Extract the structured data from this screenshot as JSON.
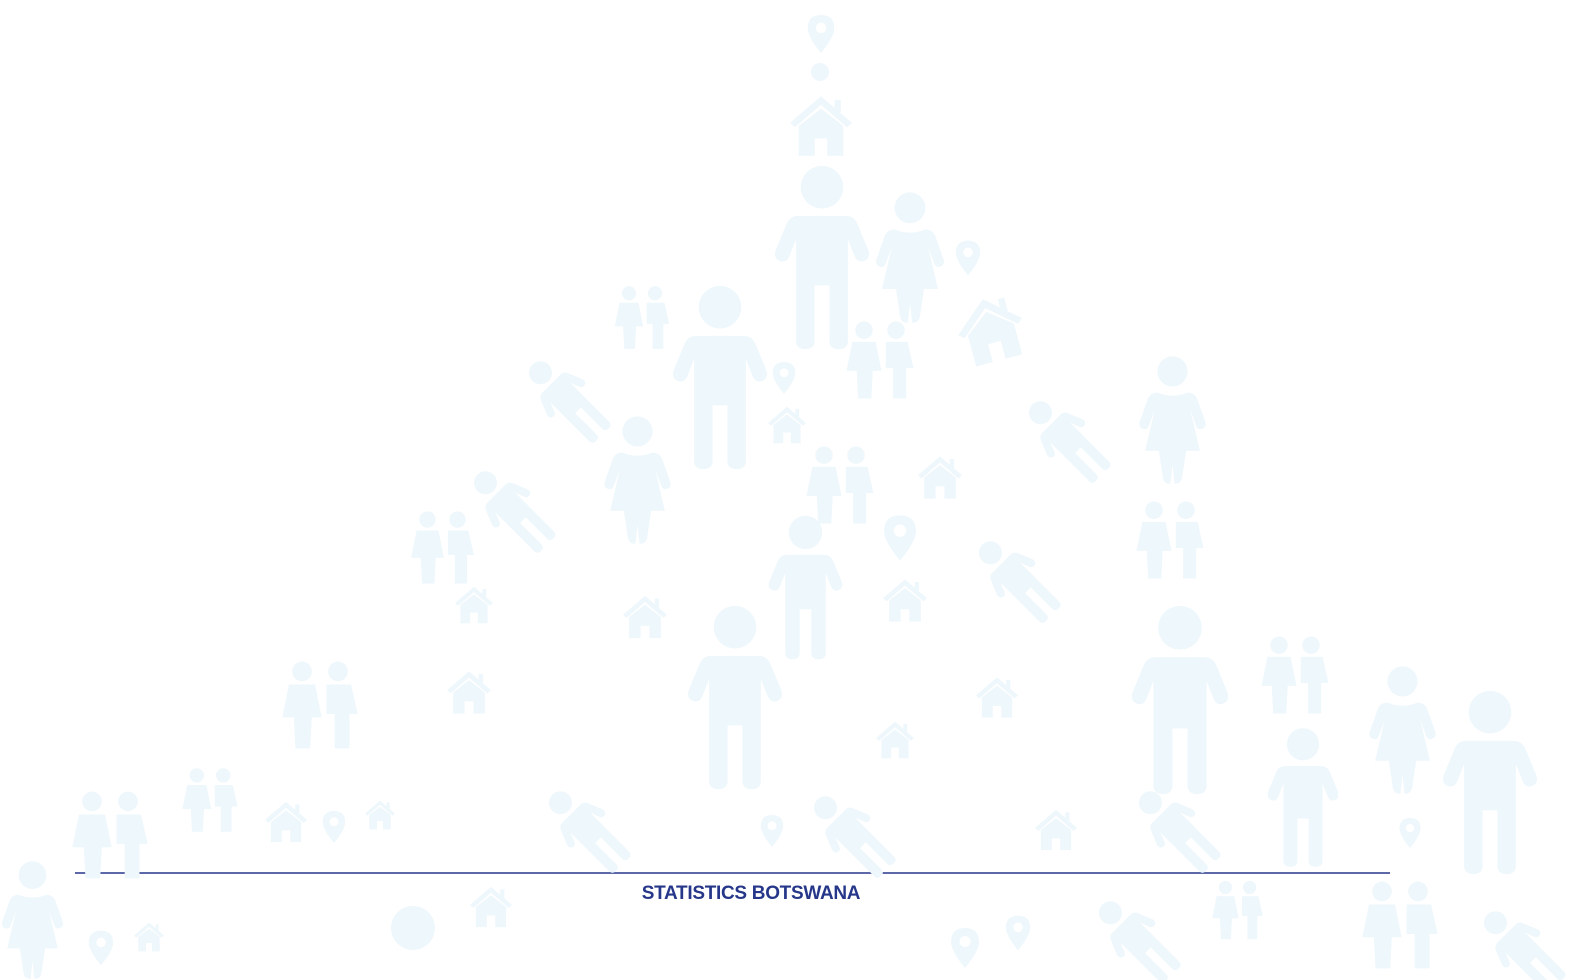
{
  "footer": {
    "organization": "STATISTICS BOTSWANA"
  }
}
